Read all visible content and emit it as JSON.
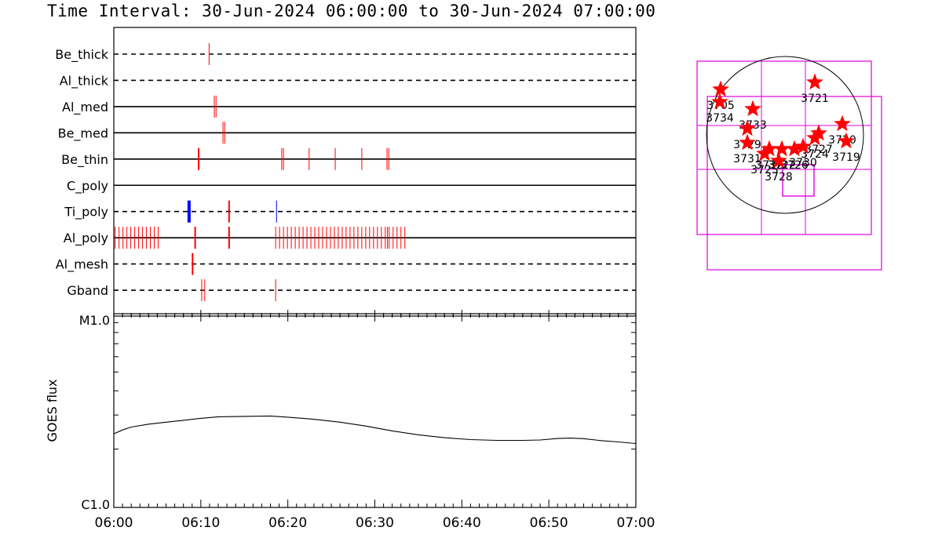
{
  "title": "Time Interval: 30-Jun-2024 06:00:00 to 30-Jun-2024 07:00:00",
  "colors": {
    "accent_red": "#ff0000",
    "accent_blue": "#0000ff",
    "box_magenta": "#e000e0"
  },
  "chart_data": [
    {
      "type": "event-timeline",
      "x_range": [
        "06:00",
        "07:00"
      ],
      "rows": [
        {
          "label": "Be_thick",
          "line": "dashed",
          "events": [
            {
              "t": 10.95,
              "color": "red",
              "w": 1
            }
          ]
        },
        {
          "label": "Al_thick",
          "line": "dashed",
          "events": []
        },
        {
          "label": "Al_med",
          "line": "solid",
          "events": [
            {
              "t": 11.55,
              "color": "red",
              "w": 1
            },
            {
              "t": 11.75,
              "color": "red",
              "w": 1
            }
          ]
        },
        {
          "label": "Be_med",
          "line": "solid",
          "events": [
            {
              "t": 12.55,
              "color": "red",
              "w": 1
            },
            {
              "t": 12.75,
              "color": "red",
              "w": 1
            }
          ]
        },
        {
          "label": "Be_thin",
          "line": "solid",
          "events": [
            {
              "t": 9.75,
              "color": "red",
              "w": 2
            },
            {
              "t": 19.3,
              "color": "red",
              "w": 1
            },
            {
              "t": 19.5,
              "color": "red",
              "w": 1
            },
            {
              "t": 22.45,
              "color": "red",
              "w": 1
            },
            {
              "t": 25.45,
              "color": "red",
              "w": 1
            },
            {
              "t": 28.5,
              "color": "red",
              "w": 1
            },
            {
              "t": 31.4,
              "color": "red",
              "w": 1
            },
            {
              "t": 31.6,
              "color": "red",
              "w": 1
            }
          ]
        },
        {
          "label": "C_poly",
          "line": "solid",
          "events": []
        },
        {
          "label": "Ti_poly",
          "line": "dashed",
          "events": [
            {
              "t": 8.65,
              "color": "blue",
              "w": 4
            },
            {
              "t": 13.25,
              "color": "red",
              "w": 2
            },
            {
              "t": 18.7,
              "color": "blue",
              "w": 1
            }
          ]
        },
        {
          "label": "Al_poly",
          "line": "solid",
          "events": [
            {
              "t": 0.15,
              "color": "red",
              "w": 1
            },
            {
              "t": 0.6,
              "color": "red",
              "w": 1
            },
            {
              "t": 1.05,
              "color": "red",
              "w": 1
            },
            {
              "t": 1.5,
              "color": "red",
              "w": 1
            },
            {
              "t": 1.95,
              "color": "red",
              "w": 1
            },
            {
              "t": 2.4,
              "color": "red",
              "w": 1
            },
            {
              "t": 2.85,
              "color": "red",
              "w": 1
            },
            {
              "t": 3.3,
              "color": "red",
              "w": 1
            },
            {
              "t": 3.75,
              "color": "red",
              "w": 1
            },
            {
              "t": 4.2,
              "color": "red",
              "w": 1
            },
            {
              "t": 4.65,
              "color": "red",
              "w": 1
            },
            {
              "t": 5.1,
              "color": "red",
              "w": 1
            },
            {
              "t": 9.35,
              "color": "red",
              "w": 2
            },
            {
              "t": 13.25,
              "color": "red",
              "w": 2
            },
            {
              "t": 18.6,
              "color": "red",
              "w": 1
            },
            {
              "t": 19.05,
              "color": "red",
              "w": 1
            },
            {
              "t": 19.5,
              "color": "red",
              "w": 1
            },
            {
              "t": 19.95,
              "color": "red",
              "w": 1
            },
            {
              "t": 20.4,
              "color": "red",
              "w": 1
            },
            {
              "t": 20.85,
              "color": "red",
              "w": 1
            },
            {
              "t": 21.3,
              "color": "red",
              "w": 1
            },
            {
              "t": 21.75,
              "color": "red",
              "w": 1
            },
            {
              "t": 22.2,
              "color": "red",
              "w": 1
            },
            {
              "t": 22.65,
              "color": "red",
              "w": 1
            },
            {
              "t": 23.1,
              "color": "red",
              "w": 1
            },
            {
              "t": 23.55,
              "color": "red",
              "w": 1
            },
            {
              "t": 24.0,
              "color": "red",
              "w": 1
            },
            {
              "t": 24.45,
              "color": "red",
              "w": 1
            },
            {
              "t": 24.9,
              "color": "red",
              "w": 1
            },
            {
              "t": 25.35,
              "color": "red",
              "w": 1
            },
            {
              "t": 25.8,
              "color": "red",
              "w": 1
            },
            {
              "t": 26.25,
              "color": "red",
              "w": 1
            },
            {
              "t": 26.7,
              "color": "red",
              "w": 1
            },
            {
              "t": 27.15,
              "color": "red",
              "w": 1
            },
            {
              "t": 27.6,
              "color": "red",
              "w": 1
            },
            {
              "t": 28.05,
              "color": "red",
              "w": 1
            },
            {
              "t": 28.5,
              "color": "red",
              "w": 1
            },
            {
              "t": 28.95,
              "color": "red",
              "w": 1
            },
            {
              "t": 29.4,
              "color": "red",
              "w": 1
            },
            {
              "t": 29.85,
              "color": "red",
              "w": 1
            },
            {
              "t": 30.3,
              "color": "red",
              "w": 1
            },
            {
              "t": 30.75,
              "color": "red",
              "w": 1
            },
            {
              "t": 31.2,
              "color": "red",
              "w": 1
            },
            {
              "t": 31.45,
              "color": "red",
              "w": 1
            },
            {
              "t": 31.65,
              "color": "red",
              "w": 1
            },
            {
              "t": 32.1,
              "color": "red",
              "w": 1
            },
            {
              "t": 32.55,
              "color": "red",
              "w": 1
            },
            {
              "t": 33.0,
              "color": "red",
              "w": 1
            },
            {
              "t": 33.45,
              "color": "red",
              "w": 1
            }
          ]
        },
        {
          "label": "Al_mesh",
          "line": "dashed",
          "events": [
            {
              "t": 9.05,
              "color": "red",
              "w": 2
            }
          ]
        },
        {
          "label": "Gband",
          "line": "dashed",
          "events": [
            {
              "t": 10.1,
              "color": "red",
              "w": 1
            },
            {
              "t": 10.45,
              "color": "red",
              "w": 1
            },
            {
              "t": 18.6,
              "color": "red",
              "w": 1
            }
          ]
        }
      ]
    },
    {
      "type": "line",
      "ylabel": "GOES flux",
      "y_ticks": [
        "M1.0",
        "C1.0"
      ],
      "y_scale": "log",
      "x_ticks": [
        "06:00",
        "06:10",
        "06:20",
        "06:30",
        "06:40",
        "06:50",
        "07:00"
      ],
      "x_range_minutes": [
        0,
        60
      ],
      "series": [
        {
          "values": [
            {
              "x": 0,
              "y": 0.38
            },
            {
              "x": 1,
              "y": 0.4
            },
            {
              "x": 2,
              "y": 0.415
            },
            {
              "x": 4,
              "y": 0.43
            },
            {
              "x": 6,
              "y": 0.44
            },
            {
              "x": 8,
              "y": 0.45
            },
            {
              "x": 10,
              "y": 0.46
            },
            {
              "x": 12,
              "y": 0.468
            },
            {
              "x": 15,
              "y": 0.47
            },
            {
              "x": 18,
              "y": 0.472
            },
            {
              "x": 20,
              "y": 0.466
            },
            {
              "x": 23,
              "y": 0.455
            },
            {
              "x": 26,
              "y": 0.44
            },
            {
              "x": 29,
              "y": 0.42
            },
            {
              "x": 32,
              "y": 0.395
            },
            {
              "x": 35,
              "y": 0.375
            },
            {
              "x": 38,
              "y": 0.36
            },
            {
              "x": 41,
              "y": 0.35
            },
            {
              "x": 44,
              "y": 0.346
            },
            {
              "x": 47,
              "y": 0.346
            },
            {
              "x": 49,
              "y": 0.348
            },
            {
              "x": 51,
              "y": 0.356
            },
            {
              "x": 52.5,
              "y": 0.358
            },
            {
              "x": 54,
              "y": 0.355
            },
            {
              "x": 56,
              "y": 0.345
            },
            {
              "x": 58,
              "y": 0.338
            },
            {
              "x": 60,
              "y": 0.33
            }
          ]
        }
      ]
    },
    {
      "type": "solar-map",
      "active_regions": [
        {
          "label": "3705",
          "x": -0.82,
          "y": -0.58
        },
        {
          "label": "3734",
          "x": -0.83,
          "y": -0.42
        },
        {
          "label": "3733",
          "x": -0.41,
          "y": -0.33
        },
        {
          "label": "3729",
          "x": -0.48,
          "y": -0.08
        },
        {
          "label": "3731",
          "x": -0.48,
          "y": 0.1
        },
        {
          "label": "3721",
          "x": 0.38,
          "y": -0.67
        },
        {
          "label": "3720",
          "x": 0.73,
          "y": -0.14
        },
        {
          "label": "3719",
          "x": 0.78,
          "y": 0.08
        },
        {
          "label": "3727",
          "x": 0.43,
          "y": -0.02
        },
        {
          "label": "3724",
          "x": 0.38,
          "y": 0.04
        },
        {
          "label": "3730",
          "x": 0.23,
          "y": 0.15
        },
        {
          "label": "3726",
          "x": 0.12,
          "y": 0.18
        },
        {
          "label": "3722",
          "x": -0.04,
          "y": 0.18
        },
        {
          "label": "3732",
          "x": -0.2,
          "y": 0.18
        },
        {
          "label": "3725",
          "x": -0.26,
          "y": 0.24
        },
        {
          "label": "3728",
          "x": -0.08,
          "y": 0.33
        }
      ]
    }
  ]
}
